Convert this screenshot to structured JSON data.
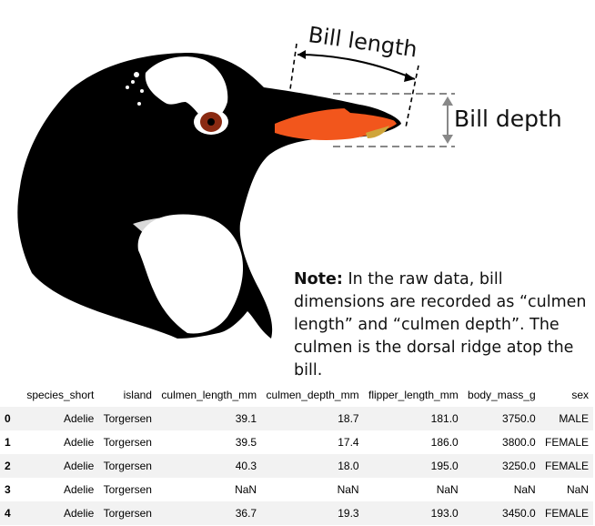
{
  "figure": {
    "bill_length_label": "Bill length",
    "bill_depth_label": "Bill depth",
    "note_bold": "Note:",
    "note_text": " In the raw data, bill dimensions are recorded as “culmen length” and “culmen depth”. The culmen is the dorsal ridge atop the bill."
  },
  "table": {
    "columns": [
      "",
      "species_short",
      "island",
      "culmen_length_mm",
      "culmen_depth_mm",
      "flipper_length_mm",
      "body_mass_g",
      "sex"
    ],
    "rows": [
      [
        "0",
        "Adelie",
        "Torgersen",
        "39.1",
        "18.7",
        "181.0",
        "3750.0",
        "MALE"
      ],
      [
        "1",
        "Adelie",
        "Torgersen",
        "39.5",
        "17.4",
        "186.0",
        "3800.0",
        "FEMALE"
      ],
      [
        "2",
        "Adelie",
        "Torgersen",
        "40.3",
        "18.0",
        "195.0",
        "3250.0",
        "FEMALE"
      ],
      [
        "3",
        "Adelie",
        "Torgersen",
        "NaN",
        "NaN",
        "NaN",
        "NaN",
        "NaN"
      ],
      [
        "4",
        "Adelie",
        "Torgersen",
        "36.7",
        "19.3",
        "193.0",
        "3450.0",
        "FEMALE"
      ]
    ]
  }
}
